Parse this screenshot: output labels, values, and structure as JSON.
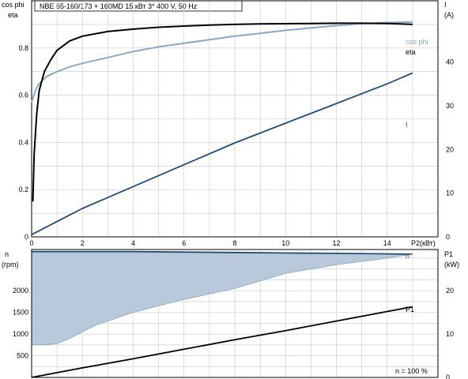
{
  "header": {
    "title": "NBE 65-160/173 + 160MD    15 кВт    3* 400 V, 50 Hz"
  },
  "colors": {
    "eta": "#000000",
    "cos_phi": "#8aa8c6",
    "current": "#1f4e7a",
    "speed_fill": "#b7c9db",
    "speed_line": "#1f4e7a",
    "p1": "#000000",
    "grid": "#c8c8c8"
  },
  "chart_data": [
    {
      "type": "line",
      "title": "NBE 65-160/173 + 160MD    15 кВт    3* 400 V, 50 Hz",
      "xlabel": "P2(кВт)",
      "xlim": [
        0,
        16
      ],
      "x_ticks": [
        "0",
        "2",
        "4",
        "6",
        "8",
        "10",
        "12",
        "14"
      ],
      "left_axis": {
        "label_top": "cos phi",
        "label_bottom": "eta",
        "ylim": [
          0,
          1.0
        ],
        "ticks": [
          "0",
          "0.2",
          "0.4",
          "0.6",
          "0.8"
        ]
      },
      "right_axis": {
        "label_top": "I",
        "label_bottom": "(A)",
        "ylim": [
          0,
          54
        ],
        "ticks": [
          "0",
          "10",
          "20",
          "30",
          "40"
        ]
      },
      "grid": true,
      "series": [
        {
          "name": "cos phi",
          "axis": "left",
          "label": "cos phi",
          "x": [
            0,
            0.15,
            0.3,
            0.6,
            1,
            1.5,
            2,
            3,
            4,
            5,
            6,
            7,
            8,
            9,
            10,
            11,
            12,
            13,
            14,
            15
          ],
          "y": [
            0.57,
            0.62,
            0.65,
            0.68,
            0.7,
            0.72,
            0.735,
            0.76,
            0.785,
            0.805,
            0.82,
            0.835,
            0.85,
            0.862,
            0.875,
            0.885,
            0.895,
            0.903,
            0.908,
            0.91
          ]
        },
        {
          "name": "eta",
          "axis": "left",
          "label": "eta",
          "x": [
            0.05,
            0.1,
            0.2,
            0.3,
            0.5,
            0.75,
            1,
            1.5,
            2,
            3,
            4,
            5,
            6,
            7,
            8,
            9,
            10,
            11,
            12,
            13,
            14,
            15
          ],
          "y": [
            0.15,
            0.35,
            0.52,
            0.62,
            0.7,
            0.75,
            0.79,
            0.83,
            0.85,
            0.87,
            0.88,
            0.888,
            0.893,
            0.897,
            0.9,
            0.902,
            0.903,
            0.904,
            0.905,
            0.905,
            0.904,
            0.9
          ]
        },
        {
          "name": "I",
          "axis": "right",
          "label": "I",
          "x": [
            0,
            1,
            2,
            4,
            6,
            8,
            10,
            12,
            14,
            15
          ],
          "y": [
            0.5,
            3.5,
            6.5,
            11.5,
            16.5,
            21.5,
            26,
            30.5,
            35,
            37.5
          ]
        }
      ]
    },
    {
      "type": "area",
      "xlim": [
        0,
        16
      ],
      "left_axis": {
        "label_top": "n",
        "label_bottom": "(rpm)",
        "ylim": [
          0,
          2950
        ],
        "ticks": [
          "500",
          "1000",
          "1500",
          "2000"
        ]
      },
      "right_axis": {
        "label_top": "P1",
        "label_bottom": "(kW)",
        "ylim": [
          0,
          29.5
        ],
        "ticks": [
          "0",
          "10",
          "20"
        ]
      },
      "grid": true,
      "annotation": "n   = 100 %",
      "series": [
        {
          "name": "n",
          "axis": "left",
          "label": "n",
          "kind": "area",
          "upper_x": [
            0,
            4,
            8,
            10,
            12,
            14,
            15
          ],
          "upper_y": [
            2900,
            2900,
            2880,
            2870,
            2860,
            2850,
            2840
          ],
          "lower_x": [
            0,
            0.5,
            1,
            1.5,
            2.5,
            4,
            6,
            8,
            10,
            12,
            14,
            15
          ],
          "lower_y": [
            750,
            750,
            780,
            900,
            1200,
            1500,
            1800,
            2050,
            2400,
            2600,
            2750,
            2840
          ]
        },
        {
          "name": "P1",
          "axis": "right",
          "label": "P1",
          "x": [
            0,
            2,
            4,
            6,
            8,
            10,
            12,
            14,
            15
          ],
          "y": [
            0,
            2.2,
            4.3,
            6.5,
            8.7,
            10.8,
            13,
            15.2,
            16.3
          ]
        }
      ]
    }
  ]
}
